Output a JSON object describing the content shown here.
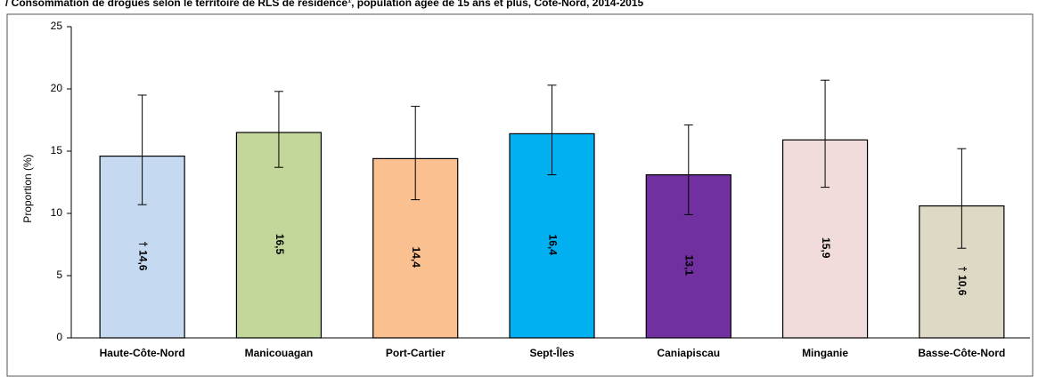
{
  "chart_data": {
    "type": "bar",
    "title": "/ Consommation de drogues selon le territoire de RLS de résidence¹, population âgée de 15 ans et plus, Côte-Nord, 2014-2015",
    "y_label": "Proportion (%)",
    "categories": [
      "Haute-Côte-Nord",
      "Manicouagan",
      "Port-Cartier",
      "Sept-Îles",
      "Caniapiscau",
      "Minganie",
      "Basse-Côte-Nord"
    ],
    "values": [
      14.6,
      16.5,
      14.4,
      16.4,
      13.1,
      15.9,
      10.6
    ],
    "value_labels": [
      "† 14,6",
      "16,5",
      "14,4",
      "16,4",
      "13,1",
      "15,9",
      "† 10,6"
    ],
    "error_low": [
      10.7,
      13.7,
      11.1,
      13.1,
      9.9,
      12.1,
      7.2
    ],
    "error_high": [
      19.5,
      19.8,
      18.6,
      20.3,
      17.1,
      20.7,
      15.2
    ],
    "colors": [
      "#c5d9f1",
      "#c4d79b",
      "#fac090",
      "#00b0f0",
      "#7030a0",
      "#f2dcdb",
      "#ddd9c4"
    ],
    "ylim": [
      0,
      25
    ],
    "yticks": [
      0,
      5,
      10,
      15,
      20,
      25
    ],
    "grid": false
  }
}
